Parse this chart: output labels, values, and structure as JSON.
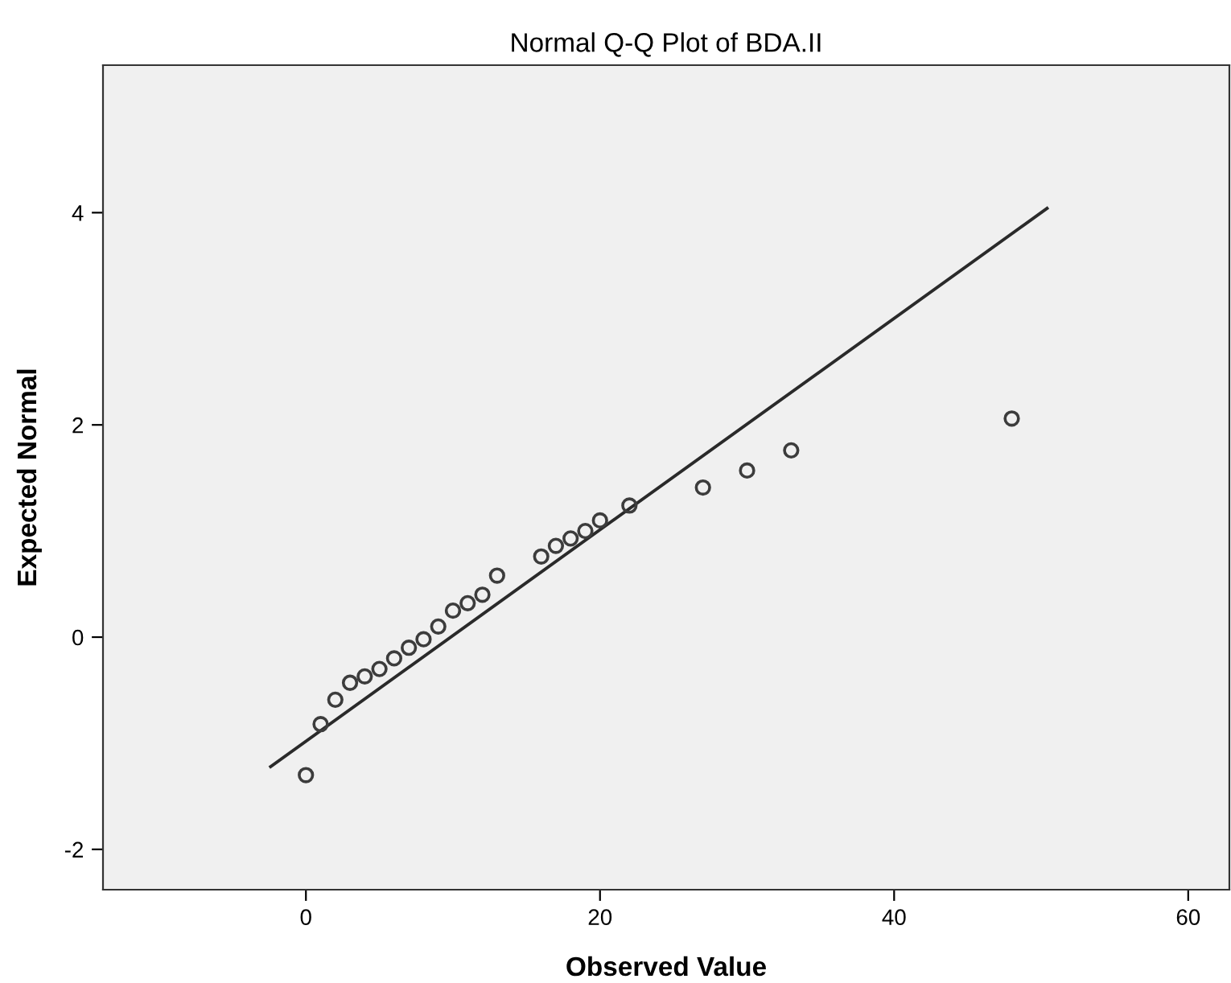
{
  "chart_data": {
    "type": "scatter",
    "title": "Normal Q-Q Plot of BDA.II",
    "xlabel": "Observed Value",
    "ylabel": "Expected Normal",
    "xlim": [
      -13.8,
      62.8
    ],
    "xticks": [
      0,
      20,
      40,
      60
    ],
    "ylim": [
      -2.38,
      5.39
    ],
    "yticks": [
      -2,
      0,
      2,
      4
    ],
    "grid": false,
    "legend": false,
    "series": [
      {
        "marker": "circle",
        "color": "#3c3c3c",
        "x": [
          0,
          1,
          2,
          3,
          4,
          5,
          6,
          7,
          8,
          9,
          10,
          11,
          12,
          13,
          16,
          17,
          18,
          19,
          20,
          22,
          27,
          30,
          33,
          48
        ],
        "values": [
          -1.3,
          -0.82,
          -0.59,
          -0.43,
          -0.37,
          -0.3,
          -0.2,
          -0.1,
          -0.02,
          0.1,
          0.25,
          0.32,
          0.4,
          0.58,
          0.76,
          0.86,
          0.93,
          1.0,
          1.1,
          1.24,
          1.41,
          1.57,
          1.76,
          2.06
        ]
      },
      {
        "type": "line",
        "color": "#2a2a2a",
        "line_style": "solid",
        "marker": "none",
        "x": [
          -2.4,
          50.4
        ],
        "values": [
          -1.22,
          4.04
        ]
      }
    ]
  }
}
